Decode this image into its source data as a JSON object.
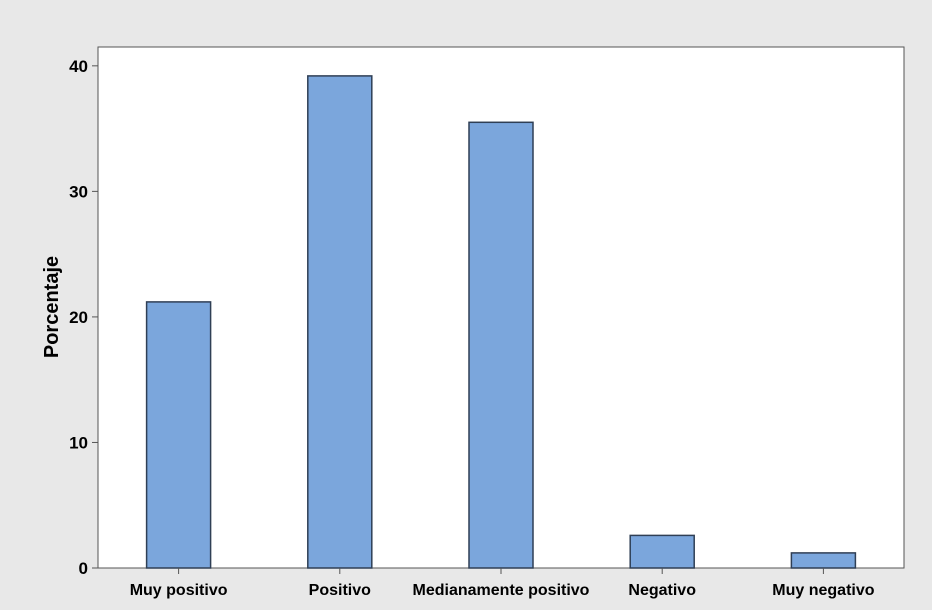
{
  "chart_data": {
    "type": "bar",
    "title": "",
    "xlabel": "",
    "ylabel": "Porcentaje",
    "categories": [
      "Muy positivo",
      "Positivo",
      "Medianamente positivo",
      "Negativo",
      "Muy negativo"
    ],
    "values": [
      21.2,
      39.2,
      35.5,
      2.6,
      1.2
    ],
    "ylim": [
      0,
      41.5
    ],
    "yticks": [
      0,
      10,
      20,
      30,
      40
    ],
    "grid": false,
    "legend": "none",
    "colors": {
      "figure_background": "#e8e8e8",
      "plot_background": "#ffffff",
      "bar_fill": "#7ba6dc",
      "bar_stroke": "#2f3f55",
      "axis": "#555555",
      "text": "#000000"
    }
  }
}
